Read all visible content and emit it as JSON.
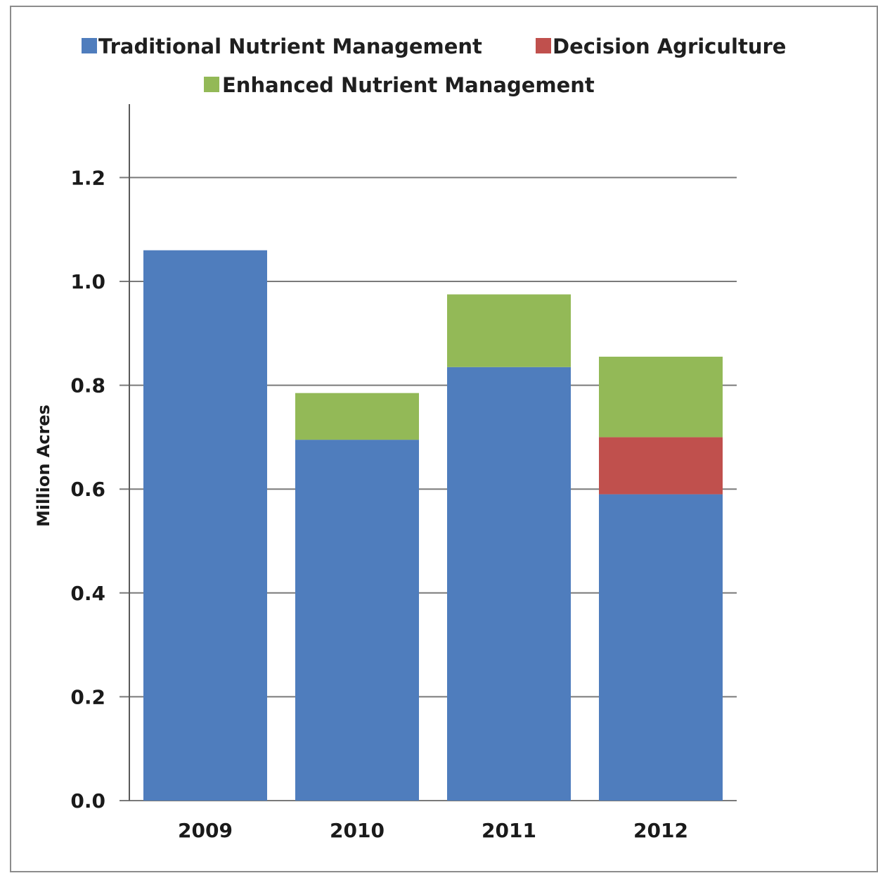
{
  "chart_data": {
    "type": "bar",
    "stacked": true,
    "categories": [
      "2009",
      "2010",
      "2011",
      "2012"
    ],
    "series": [
      {
        "name": "Traditional Nutrient Management",
        "color": "#4f7dbd",
        "values": [
          1.06,
          0.695,
          0.835,
          0.59
        ]
      },
      {
        "name": "Decision Agriculture",
        "color": "#c0504d",
        "values": [
          0,
          0,
          0,
          0.11
        ]
      },
      {
        "name": "Enhanced Nutrient Management",
        "color": "#93b957",
        "values": [
          0,
          0.09,
          0.14,
          0.155
        ]
      }
    ],
    "ylabel": "Million Acres",
    "xlabel": "",
    "ylim": [
      0,
      1.2
    ],
    "yticks": [
      "0.0",
      "0.2",
      "0.4",
      "0.6",
      "0.8",
      "1.0",
      "1.2"
    ],
    "grid": true,
    "legend_position": "top"
  }
}
